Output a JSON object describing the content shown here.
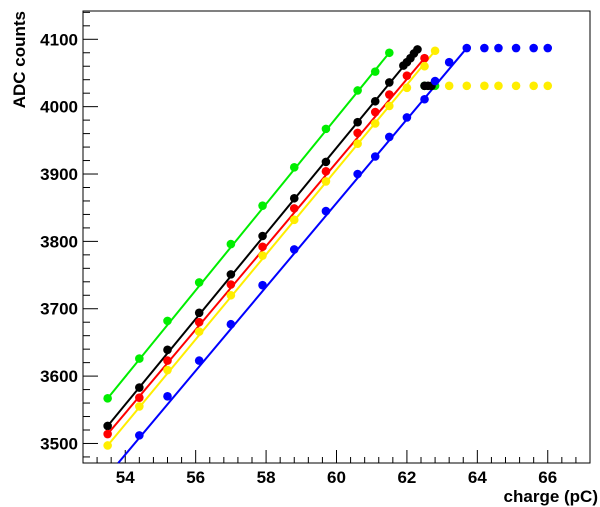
{
  "chart_data": {
    "type": "line",
    "xlabel": "charge (pC)",
    "ylabel": "ADC counts",
    "xlim": [
      52.8,
      67.2
    ],
    "ylim": [
      3471,
      4142
    ],
    "grid": false,
    "x_ticks": [
      54,
      56,
      58,
      60,
      62,
      64,
      66
    ],
    "y_ticks": [
      3500,
      3600,
      3700,
      3800,
      3900,
      4000,
      4100
    ],
    "x_tick_labels": [
      "54",
      "56",
      "58",
      "60",
      "62",
      "64",
      "66"
    ],
    "y_tick_labels": [
      "3500",
      "3600",
      "3700",
      "3800",
      "3900",
      "4000",
      "4100"
    ],
    "series": [
      {
        "color": "#00ee00",
        "fit_line": [
          [
            53.5,
            3567
          ],
          [
            61.5,
            4080
          ]
        ],
        "x": [
          53.5,
          54.4,
          55.2,
          56.1,
          57.0,
          57.9,
          58.8,
          59.7,
          60.6,
          61.1,
          61.5,
          62.5,
          62.8
        ],
        "y": [
          3567,
          3626,
          3682,
          3739,
          3796,
          3853,
          3910,
          3967,
          4024,
          4052,
          4080,
          4031,
          4031
        ]
      },
      {
        "color": "#000000",
        "fit_line": [
          [
            53.5,
            3526
          ],
          [
            62.3,
            4085
          ]
        ],
        "x": [
          53.5,
          54.4,
          55.2,
          56.1,
          57.0,
          57.9,
          58.8,
          59.7,
          60.6,
          61.1,
          61.5,
          61.9,
          62.0,
          62.1,
          62.2,
          62.3,
          62.5,
          62.6,
          62.7
        ],
        "y": [
          3526,
          3583,
          3639,
          3694,
          3751,
          3808,
          3864,
          3918,
          3977,
          4008,
          4036,
          4061,
          4066,
          4072,
          4079,
          4085,
          4031,
          4031,
          4031
        ]
      },
      {
        "color": "#ff0000",
        "fit_line": [
          [
            53.5,
            3514
          ],
          [
            62.5,
            4072
          ]
        ],
        "x": [
          53.5,
          54.4,
          55.2,
          56.1,
          57.0,
          57.9,
          58.8,
          59.7,
          60.6,
          61.1,
          61.5,
          62.0,
          62.5
        ],
        "y": [
          3514,
          3568,
          3623,
          3680,
          3736,
          3792,
          3849,
          3904,
          3961,
          3992,
          4018,
          4046,
          4072
        ]
      },
      {
        "color": "#ffee00",
        "fit_line": [
          [
            53.5,
            3497
          ],
          [
            62.8,
            4083
          ]
        ],
        "x": [
          53.5,
          54.4,
          55.2,
          56.1,
          57.0,
          57.9,
          58.8,
          59.7,
          60.6,
          61.1,
          61.5,
          62.0,
          62.5,
          62.8,
          63.2,
          63.7,
          64.2,
          64.6,
          65.1,
          65.6,
          66.0
        ],
        "y": [
          3497,
          3555,
          3609,
          3666,
          3720,
          3779,
          3832,
          3889,
          3945,
          3975,
          4001,
          4028,
          4060,
          4083,
          4031,
          4031,
          4031,
          4031,
          4031,
          4031,
          4031
        ]
      },
      {
        "color": "#0000ff",
        "fit_line": [
          [
            53.8,
            3471
          ],
          [
            63.7,
            4087
          ]
        ],
        "x": [
          54.4,
          55.2,
          56.1,
          57.0,
          57.9,
          58.8,
          59.7,
          60.6,
          61.1,
          61.5,
          62.0,
          62.5,
          62.8,
          63.2,
          63.7,
          64.2,
          64.6,
          65.1,
          65.6,
          66.0
        ],
        "y": [
          3512,
          3570,
          3623,
          3677,
          3735,
          3788,
          3845,
          3900,
          3926,
          3955,
          3984,
          4011,
          4038,
          4066,
          4087,
          4087,
          4087,
          4087,
          4087,
          4087
        ]
      }
    ]
  }
}
